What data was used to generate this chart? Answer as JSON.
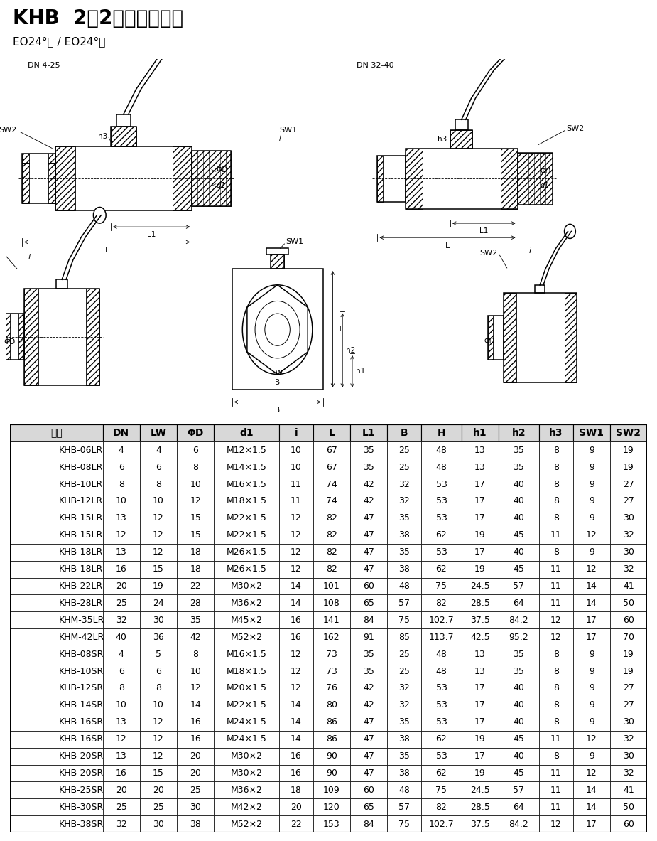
{
  "title1": "KHB  ",
  "title2": "2位2通外螺纹球阀",
  "subtitle": "EO24°锥 / EO24°锥",
  "dn425": "DN 4-25",
  "dn3240": "DN 32-40",
  "sw1": "SW1",
  "sw2": "SW2",
  "h3": "h3",
  "label_L": "L",
  "label_L1": "L1",
  "label_i": "i",
  "label_B": "B",
  "label_H": "H",
  "label_h1": "h1",
  "label_h2": "h2",
  "label_LW": "LW",
  "label_phiD": "ΦD",
  "label_d1": "d1",
  "table_headers": [
    "型号",
    "DN",
    "LW",
    "ΦD",
    "d1",
    "i",
    "L",
    "L1",
    "B",
    "H",
    "h1",
    "h2",
    "h3",
    "SW1",
    "SW2"
  ],
  "table_rows": [
    [
      "KHB-06LR",
      "4",
      "4",
      "6",
      "M12×1.5",
      "10",
      "67",
      "35",
      "25",
      "48",
      "13",
      "35",
      "8",
      "9",
      "19"
    ],
    [
      "KHB-08LR",
      "6",
      "6",
      "8",
      "M14×1.5",
      "10",
      "67",
      "35",
      "25",
      "48",
      "13",
      "35",
      "8",
      "9",
      "19"
    ],
    [
      "KHB-10LR",
      "8",
      "8",
      "10",
      "M16×1.5",
      "11",
      "74",
      "42",
      "32",
      "53",
      "17",
      "40",
      "8",
      "9",
      "27"
    ],
    [
      "KHB-12LR",
      "10",
      "10",
      "12",
      "M18×1.5",
      "11",
      "74",
      "42",
      "32",
      "53",
      "17",
      "40",
      "8",
      "9",
      "27"
    ],
    [
      "KHB-15LR",
      "13",
      "12",
      "15",
      "M22×1.5",
      "12",
      "82",
      "47",
      "35",
      "53",
      "17",
      "40",
      "8",
      "9",
      "30"
    ],
    [
      "KHB-15LR",
      "12",
      "12",
      "15",
      "M22×1.5",
      "12",
      "82",
      "47",
      "38",
      "62",
      "19",
      "45",
      "11",
      "12",
      "32"
    ],
    [
      "KHB-18LR",
      "13",
      "12",
      "18",
      "M26×1.5",
      "12",
      "82",
      "47",
      "35",
      "53",
      "17",
      "40",
      "8",
      "9",
      "30"
    ],
    [
      "KHB-18LR",
      "16",
      "15",
      "18",
      "M26×1.5",
      "12",
      "82",
      "47",
      "38",
      "62",
      "19",
      "45",
      "11",
      "12",
      "32"
    ],
    [
      "KHB-22LR",
      "20",
      "19",
      "22",
      "M30×2",
      "14",
      "101",
      "60",
      "48",
      "75",
      "24.5",
      "57",
      "11",
      "14",
      "41"
    ],
    [
      "KHB-28LR",
      "25",
      "24",
      "28",
      "M36×2",
      "14",
      "108",
      "65",
      "57",
      "82",
      "28.5",
      "64",
      "11",
      "14",
      "50"
    ],
    [
      "KHM-35LR",
      "32",
      "30",
      "35",
      "M45×2",
      "16",
      "141",
      "84",
      "75",
      "102.7",
      "37.5",
      "84.2",
      "12",
      "17",
      "60"
    ],
    [
      "KHM-42LR",
      "40",
      "36",
      "42",
      "M52×2",
      "16",
      "162",
      "91",
      "85",
      "113.7",
      "42.5",
      "95.2",
      "12",
      "17",
      "70"
    ],
    [
      "KHB-08SR",
      "4",
      "5",
      "8",
      "M16×1.5",
      "12",
      "73",
      "35",
      "25",
      "48",
      "13",
      "35",
      "8",
      "9",
      "19"
    ],
    [
      "KHB-10SR",
      "6",
      "6",
      "10",
      "M18×1.5",
      "12",
      "73",
      "35",
      "25",
      "48",
      "13",
      "35",
      "8",
      "9",
      "19"
    ],
    [
      "KHB-12SR",
      "8",
      "8",
      "12",
      "M20×1.5",
      "12",
      "76",
      "42",
      "32",
      "53",
      "17",
      "40",
      "8",
      "9",
      "27"
    ],
    [
      "KHB-14SR",
      "10",
      "10",
      "14",
      "M22×1.5",
      "14",
      "80",
      "42",
      "32",
      "53",
      "17",
      "40",
      "8",
      "9",
      "27"
    ],
    [
      "KHB-16SR",
      "13",
      "12",
      "16",
      "M24×1.5",
      "14",
      "86",
      "47",
      "35",
      "53",
      "17",
      "40",
      "8",
      "9",
      "30"
    ],
    [
      "KHB-16SR",
      "12",
      "12",
      "16",
      "M24×1.5",
      "14",
      "86",
      "47",
      "38",
      "62",
      "19",
      "45",
      "11",
      "12",
      "32"
    ],
    [
      "KHB-20SR",
      "13",
      "12",
      "20",
      "M30×2",
      "16",
      "90",
      "47",
      "35",
      "53",
      "17",
      "40",
      "8",
      "9",
      "30"
    ],
    [
      "KHB-20SR",
      "16",
      "15",
      "20",
      "M30×2",
      "16",
      "90",
      "47",
      "38",
      "62",
      "19",
      "45",
      "11",
      "12",
      "32"
    ],
    [
      "KHB-25SR",
      "20",
      "20",
      "25",
      "M36×2",
      "18",
      "109",
      "60",
      "48",
      "75",
      "24.5",
      "57",
      "11",
      "14",
      "41"
    ],
    [
      "KHB-30SR",
      "25",
      "25",
      "30",
      "M42×2",
      "20",
      "120",
      "65",
      "57",
      "82",
      "28.5",
      "64",
      "11",
      "14",
      "50"
    ],
    [
      "KHB-38SR",
      "32",
      "30",
      "38",
      "M52×2",
      "22",
      "153",
      "84",
      "75",
      "102.7",
      "37.5",
      "84.2",
      "12",
      "17",
      "60"
    ]
  ],
  "col_widths": [
    1.5,
    0.6,
    0.6,
    0.6,
    1.05,
    0.55,
    0.6,
    0.6,
    0.55,
    0.65,
    0.6,
    0.65,
    0.55,
    0.6,
    0.6
  ],
  "header_bg": "#e0e0e0",
  "title_fontsize": 20,
  "subtitle_fontsize": 11,
  "table_fontsize": 9,
  "header_fontsize": 10
}
